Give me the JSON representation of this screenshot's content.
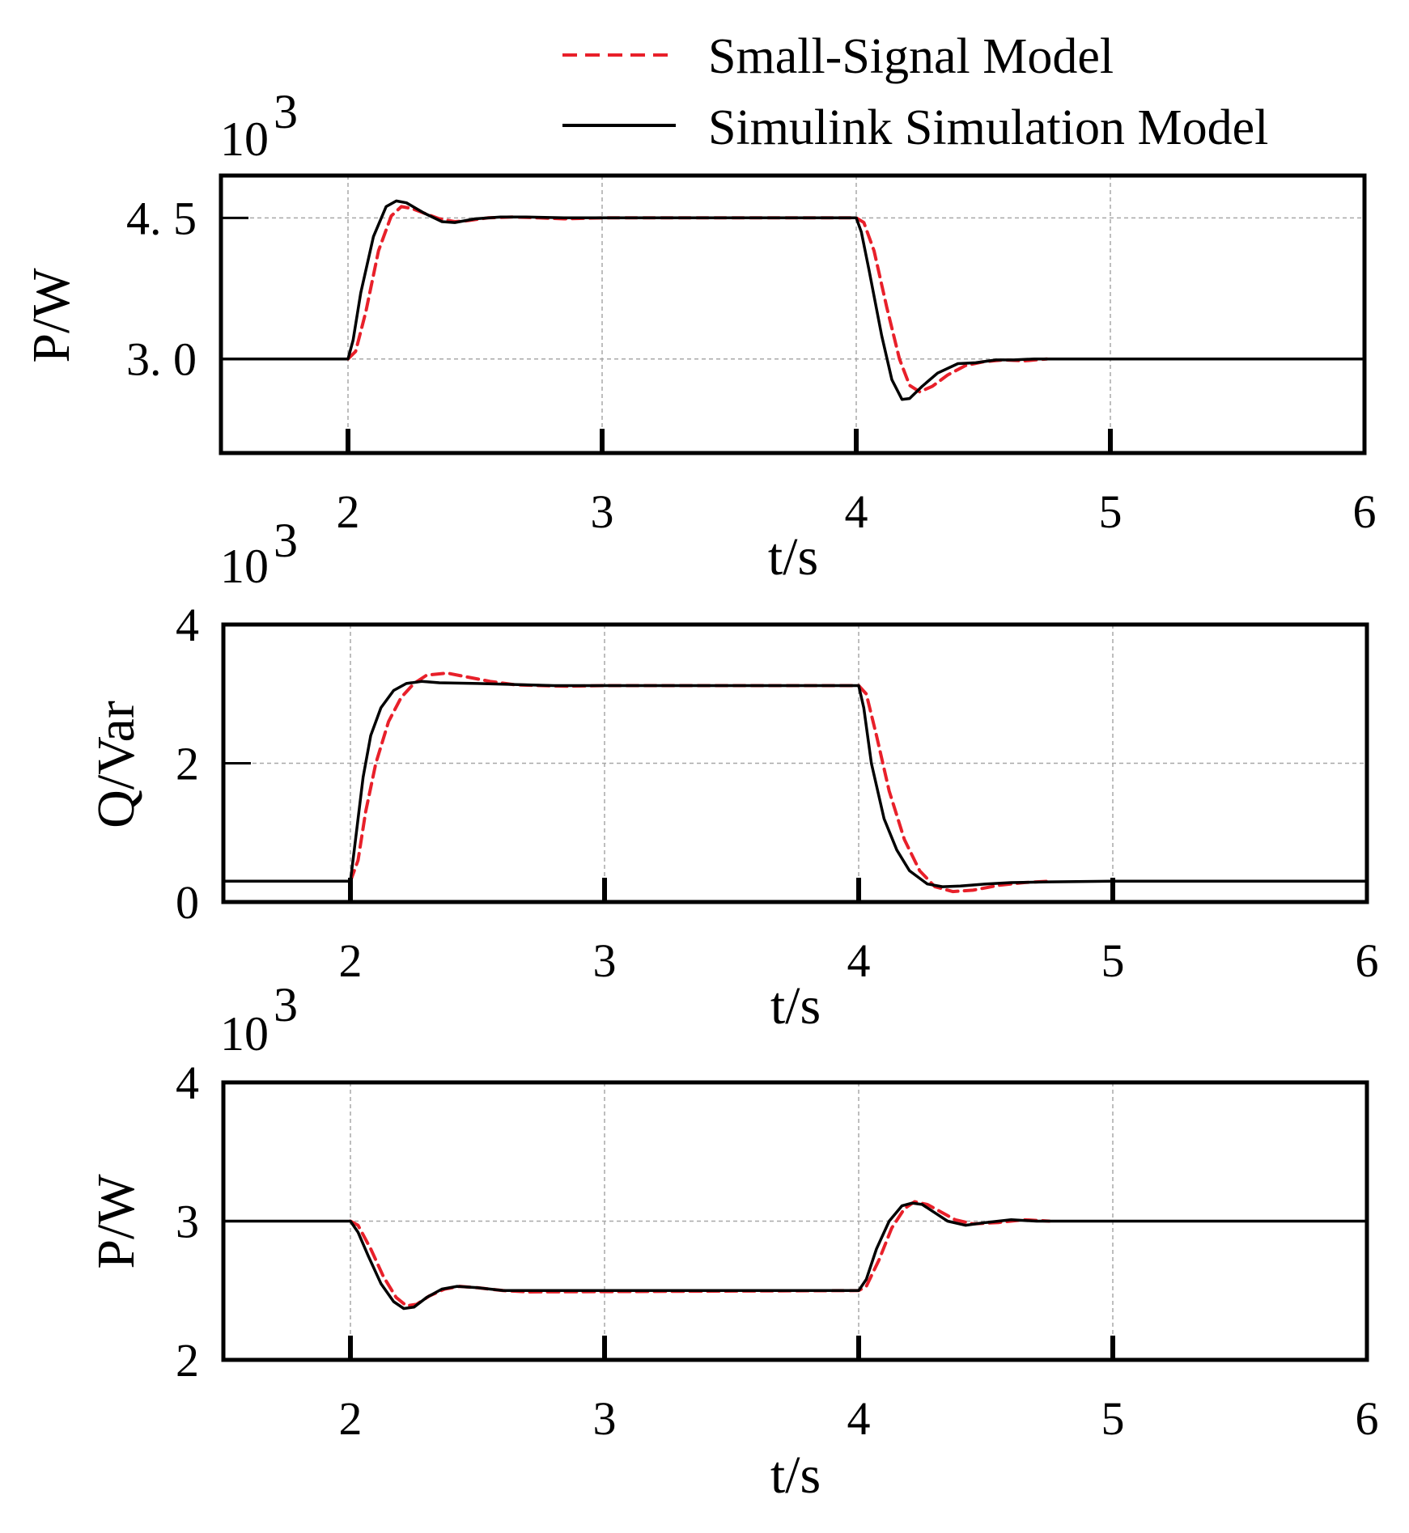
{
  "legend": {
    "entries": [
      {
        "label": "Small-Signal Model",
        "color": "#e8202a",
        "style": "dashed"
      },
      {
        "label": "Simulink Simulation Model",
        "color": "#000000",
        "style": "solid"
      }
    ]
  },
  "chart_data": [
    {
      "type": "line",
      "title": "",
      "xlabel": "t/s",
      "ylabel": "P/W",
      "exponent_base": "10",
      "exponent_power": "3",
      "xlim": [
        1.5,
        6
      ],
      "ylim": [
        2.0,
        4.95
      ],
      "xticks": [
        2,
        3,
        4,
        5,
        6
      ],
      "yticks": [
        3.0,
        4.5
      ],
      "ytick_labels": [
        "3. 0",
        "4. 5"
      ],
      "grid": true,
      "series": [
        {
          "name": "Simulink Simulation Model",
          "x": [
            1.5,
            2.0,
            2.02,
            2.05,
            2.1,
            2.15,
            2.19,
            2.23,
            2.3,
            2.37,
            2.42,
            2.5,
            2.6,
            2.7,
            2.85,
            3.0,
            4.0,
            4.02,
            4.05,
            4.1,
            4.14,
            4.18,
            4.21,
            4.26,
            4.32,
            4.4,
            4.47,
            4.55,
            4.62,
            4.7,
            5.0,
            6.0
          ],
          "y": [
            3.0,
            3.0,
            3.2,
            3.7,
            4.3,
            4.62,
            4.68,
            4.66,
            4.55,
            4.46,
            4.45,
            4.49,
            4.51,
            4.51,
            4.5,
            4.5,
            4.5,
            4.35,
            3.95,
            3.25,
            2.78,
            2.57,
            2.58,
            2.71,
            2.85,
            2.95,
            2.96,
            2.99,
            2.99,
            3.0,
            3.0,
            3.0
          ]
        },
        {
          "name": "Small-Signal Model",
          "x": [
            2.0,
            2.03,
            2.07,
            2.12,
            2.17,
            2.21,
            2.25,
            2.3,
            2.36,
            2.42,
            2.47,
            2.55,
            2.65,
            2.75,
            2.85,
            3.0,
            4.0,
            4.03,
            4.07,
            4.12,
            4.17,
            4.21,
            4.25,
            4.3,
            4.36,
            4.43,
            4.5,
            4.58,
            4.66,
            4.75
          ],
          "y": [
            3.0,
            3.08,
            3.5,
            4.15,
            4.52,
            4.62,
            4.6,
            4.55,
            4.49,
            4.46,
            4.47,
            4.5,
            4.51,
            4.5,
            4.49,
            4.5,
            4.5,
            4.45,
            4.15,
            3.55,
            3.0,
            2.72,
            2.65,
            2.71,
            2.83,
            2.93,
            2.97,
            2.99,
            2.98,
            3.0
          ]
        }
      ]
    },
    {
      "type": "line",
      "title": "",
      "xlabel": "t/s",
      "ylabel": "Q/Var",
      "exponent_base": "10",
      "exponent_power": "3",
      "xlim": [
        1.5,
        6
      ],
      "ylim": [
        0,
        4
      ],
      "xticks": [
        2,
        3,
        4,
        5,
        6
      ],
      "yticks": [
        0,
        2,
        4
      ],
      "ytick_labels": [
        "0",
        "2",
        "4"
      ],
      "grid": true,
      "series": [
        {
          "name": "Simulink Simulation Model",
          "x": [
            1.5,
            2.0,
            2.02,
            2.05,
            2.08,
            2.12,
            2.17,
            2.22,
            2.28,
            2.35,
            2.5,
            2.7,
            2.8,
            3.0,
            4.0,
            4.02,
            4.05,
            4.1,
            4.15,
            4.2,
            4.27,
            4.33,
            4.4,
            4.5,
            4.6,
            4.75,
            5.0,
            6.0
          ],
          "y": [
            0.3,
            0.3,
            0.9,
            1.8,
            2.4,
            2.8,
            3.05,
            3.15,
            3.18,
            3.16,
            3.15,
            3.13,
            3.12,
            3.12,
            3.12,
            2.8,
            2.0,
            1.2,
            0.75,
            0.45,
            0.26,
            0.22,
            0.23,
            0.26,
            0.28,
            0.29,
            0.3,
            0.3
          ]
        },
        {
          "name": "Small-Signal Model",
          "x": [
            2.0,
            2.03,
            2.06,
            2.1,
            2.15,
            2.2,
            2.25,
            2.3,
            2.38,
            2.45,
            2.55,
            2.65,
            2.75,
            2.85,
            3.0,
            4.0,
            4.03,
            4.07,
            4.12,
            4.18,
            4.24,
            4.3,
            4.37,
            4.45,
            4.55,
            4.65,
            4.75
          ],
          "y": [
            0.3,
            0.6,
            1.3,
            2.0,
            2.6,
            2.95,
            3.15,
            3.27,
            3.3,
            3.25,
            3.18,
            3.13,
            3.12,
            3.11,
            3.12,
            3.12,
            3.0,
            2.4,
            1.6,
            0.9,
            0.45,
            0.22,
            0.15,
            0.17,
            0.24,
            0.28,
            0.3
          ]
        }
      ]
    },
    {
      "type": "line",
      "title": "",
      "xlabel": "t/s",
      "ylabel": "P/W",
      "exponent_base": "10",
      "exponent_power": "3",
      "xlim": [
        1.5,
        6
      ],
      "ylim": [
        2,
        4
      ],
      "xticks": [
        2,
        3,
        4,
        5,
        6
      ],
      "yticks": [
        2,
        3,
        4
      ],
      "ytick_labels": [
        "2",
        "3",
        "4"
      ],
      "grid": true,
      "series": [
        {
          "name": "Simulink Simulation Model",
          "x": [
            1.5,
            2.0,
            2.03,
            2.07,
            2.12,
            2.17,
            2.21,
            2.25,
            2.3,
            2.36,
            2.42,
            2.5,
            2.6,
            2.7,
            3.0,
            4.0,
            4.03,
            4.07,
            4.12,
            4.17,
            4.21,
            4.25,
            4.3,
            4.35,
            4.42,
            4.5,
            4.6,
            4.7,
            5.0,
            6.0
          ],
          "y": [
            3.0,
            3.0,
            2.92,
            2.75,
            2.55,
            2.42,
            2.37,
            2.38,
            2.45,
            2.51,
            2.53,
            2.52,
            2.5,
            2.5,
            2.5,
            2.5,
            2.58,
            2.8,
            3.0,
            3.11,
            3.13,
            3.12,
            3.06,
            3.0,
            2.97,
            2.99,
            3.01,
            3.0,
            3.0,
            3.0
          ]
        },
        {
          "name": "Small-Signal Model",
          "x": [
            2.0,
            2.03,
            2.08,
            2.13,
            2.18,
            2.22,
            2.26,
            2.31,
            2.37,
            2.43,
            2.5,
            2.6,
            2.7,
            4.0,
            4.03,
            4.08,
            4.13,
            4.18,
            4.22,
            4.27,
            4.32,
            4.38,
            4.45,
            4.55,
            4.65,
            4.75
          ],
          "y": [
            3.0,
            2.97,
            2.8,
            2.6,
            2.45,
            2.39,
            2.4,
            2.46,
            2.51,
            2.53,
            2.52,
            2.5,
            2.49,
            2.5,
            2.53,
            2.72,
            2.95,
            3.09,
            3.14,
            3.12,
            3.07,
            3.01,
            2.98,
            2.99,
            3.01,
            3.0
          ]
        }
      ]
    }
  ]
}
